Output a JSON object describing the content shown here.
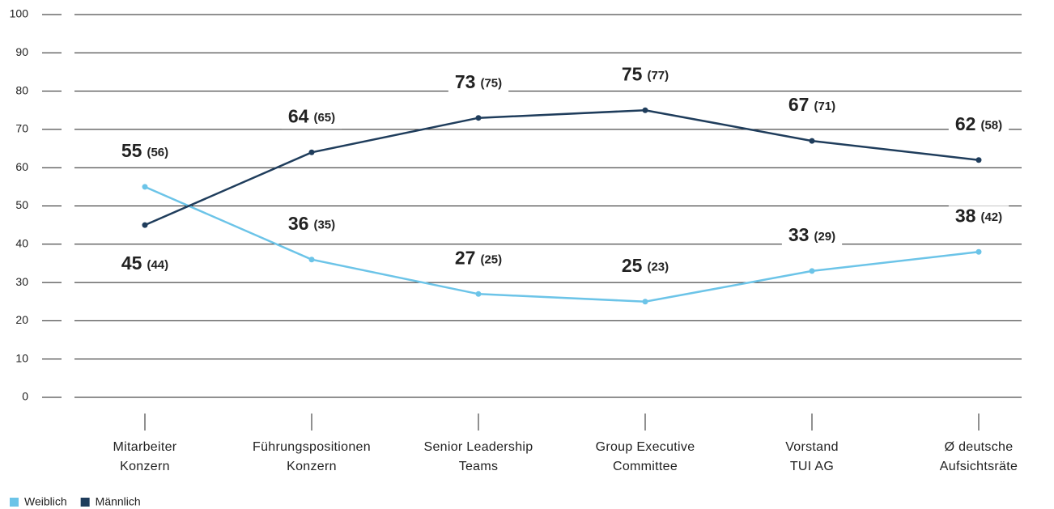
{
  "chart_data": {
    "type": "line",
    "categories": [
      [
        "Mitarbeiter",
        "Konzern"
      ],
      [
        "Führungspositionen",
        "Konzern"
      ],
      [
        "Senior Leadership",
        "Teams"
      ],
      [
        "Group Executive",
        "Committee"
      ],
      [
        "Vorstand",
        "TUI AG"
      ],
      [
        "Ø deutsche",
        "Aufsichtsräte"
      ]
    ],
    "series": [
      {
        "name": "Weiblich",
        "color": "#6cc4e8",
        "label_color": "#1ba3dc",
        "values": [
          55,
          36,
          27,
          25,
          33,
          38
        ],
        "comparison_labels": [
          "(56)",
          "(35)",
          "(25)",
          "(23)",
          "(29)",
          "(42)"
        ]
      },
      {
        "name": "Männlich",
        "color": "#1f3d5c",
        "label_color": "#000000",
        "values": [
          45,
          64,
          73,
          75,
          67,
          62
        ],
        "comparison_labels": [
          "(44)",
          "(65)",
          "(75)",
          "(77)",
          "(71)",
          "(58)"
        ]
      }
    ],
    "ylim": [
      0,
      100
    ],
    "yticks": [
      0,
      10,
      20,
      30,
      40,
      50,
      60,
      70,
      80,
      90,
      100
    ],
    "grid": true,
    "legend": "bottom-left"
  }
}
